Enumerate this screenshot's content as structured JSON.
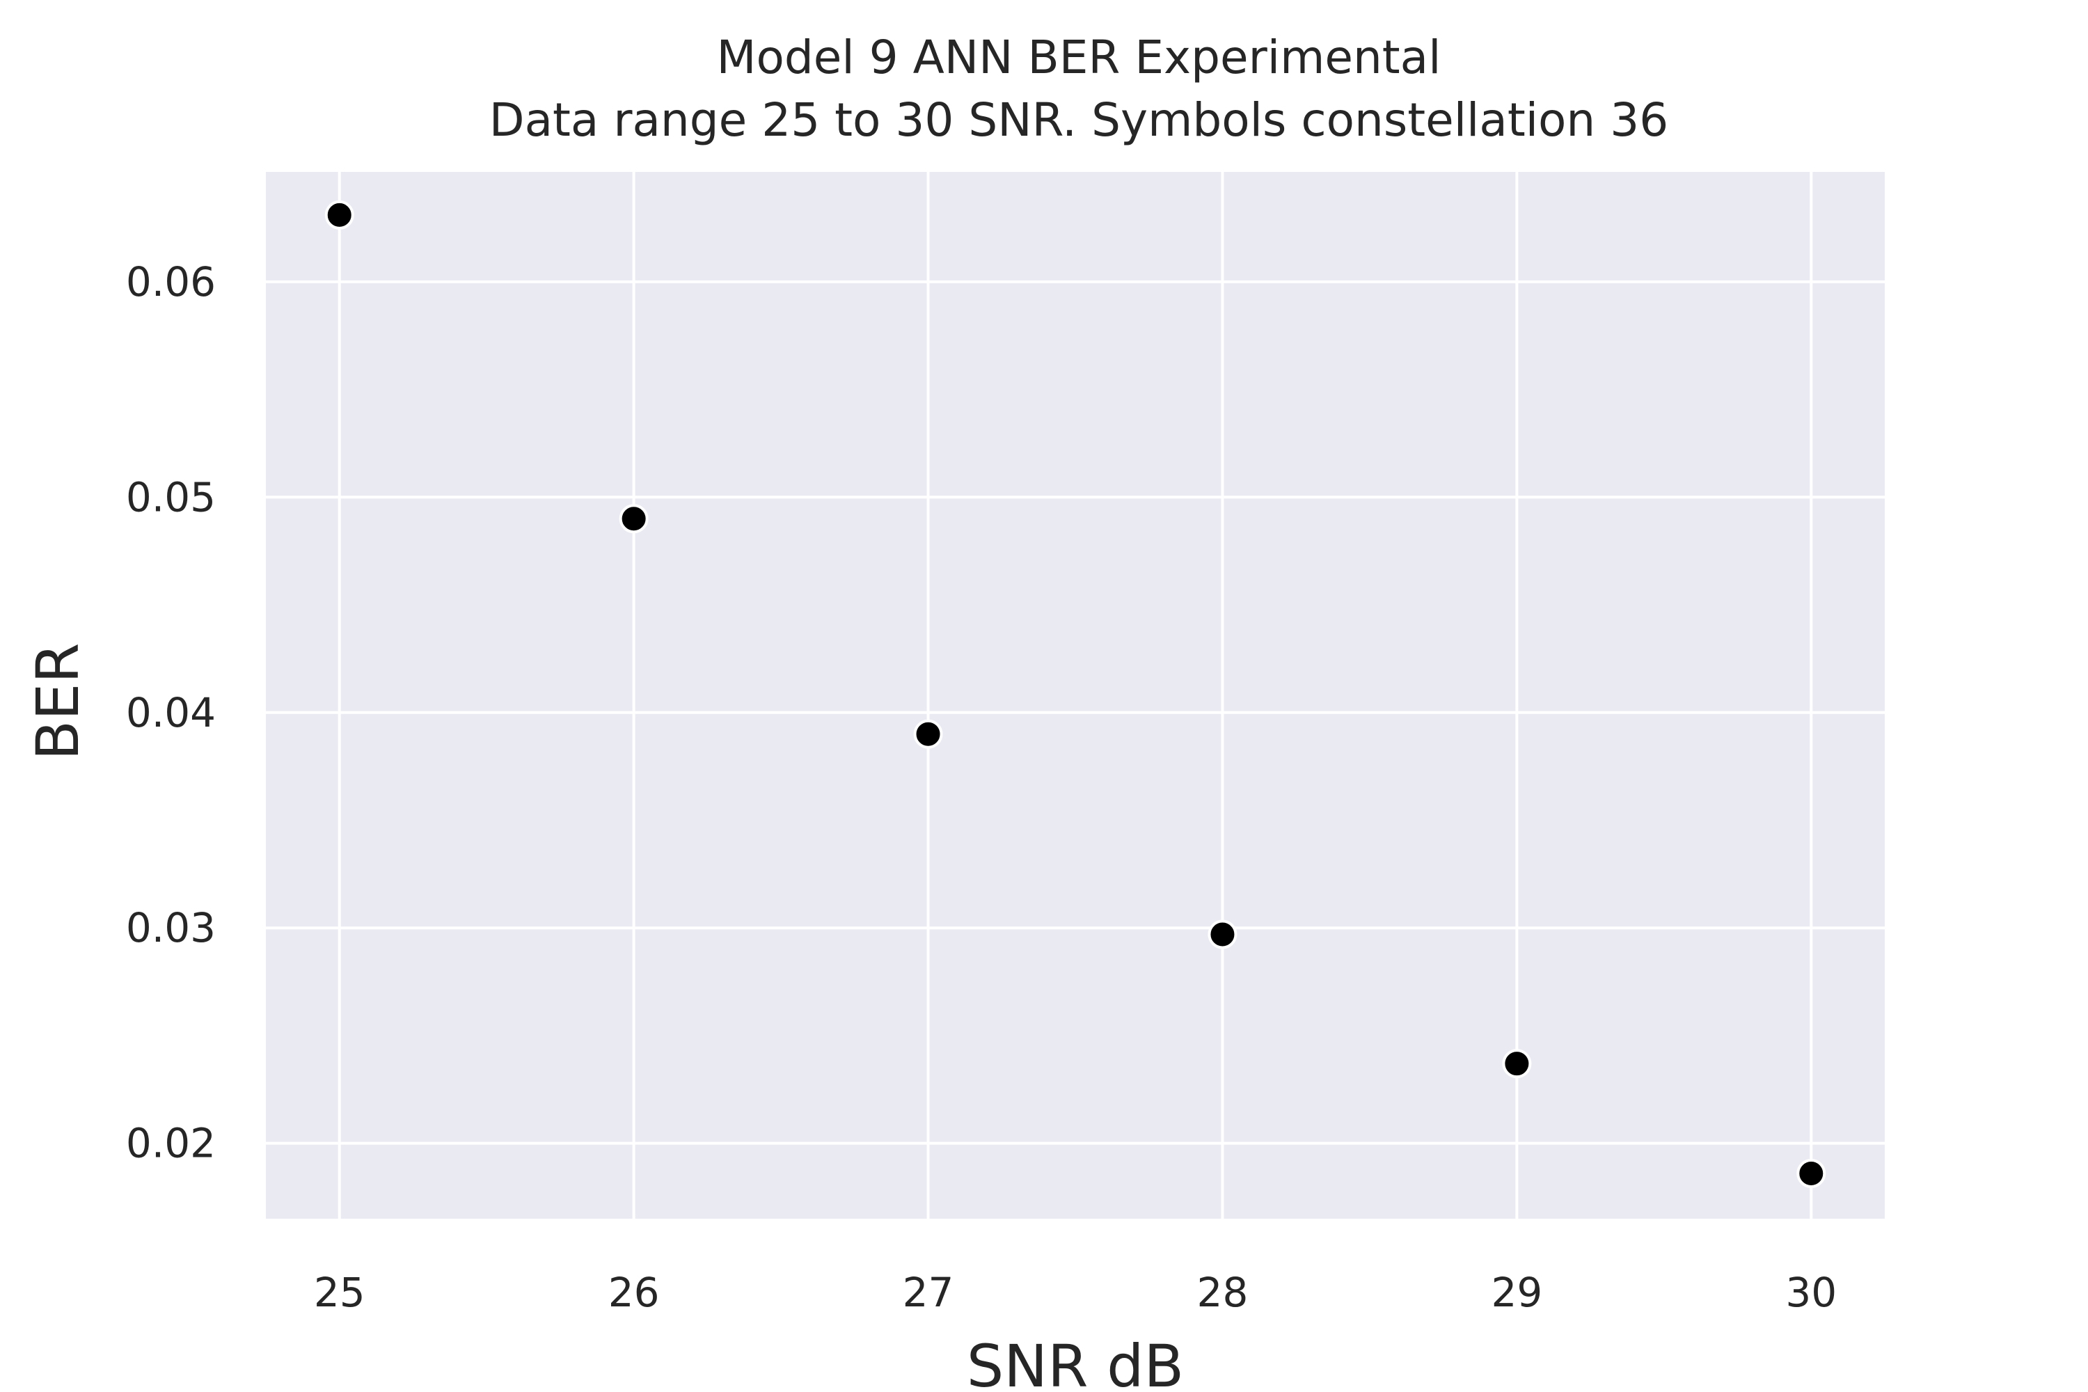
{
  "chart_data": {
    "type": "scatter",
    "title": "Model 9 ANN BER Experimental",
    "subtitle": "Data range 25 to 30 SNR. Symbols constellation 36",
    "xlabel": "SNR dB",
    "ylabel": "BER",
    "x": [
      25,
      26,
      27,
      28,
      29,
      30
    ],
    "y": [
      0.0631,
      0.049,
      0.039,
      0.0297,
      0.0237,
      0.0186
    ],
    "xlim": [
      24.75,
      30.25
    ],
    "ylim": [
      0.0165,
      0.0651
    ],
    "xticks": [
      25,
      26,
      27,
      28,
      29,
      30
    ],
    "xtick_labels": [
      "25",
      "26",
      "27",
      "28",
      "29",
      "30"
    ],
    "yticks": [
      0.02,
      0.03,
      0.04,
      0.05,
      0.06
    ],
    "ytick_labels": [
      "0.02",
      "0.03",
      "0.04",
      "0.05",
      "0.06"
    ],
    "grid": true,
    "legend": "none",
    "colors": {
      "plot_background": "#eaeaf2",
      "grid": "#ffffff",
      "marker_fill": "#000000",
      "marker_edge": "#ffffff",
      "text": "#262626"
    }
  }
}
